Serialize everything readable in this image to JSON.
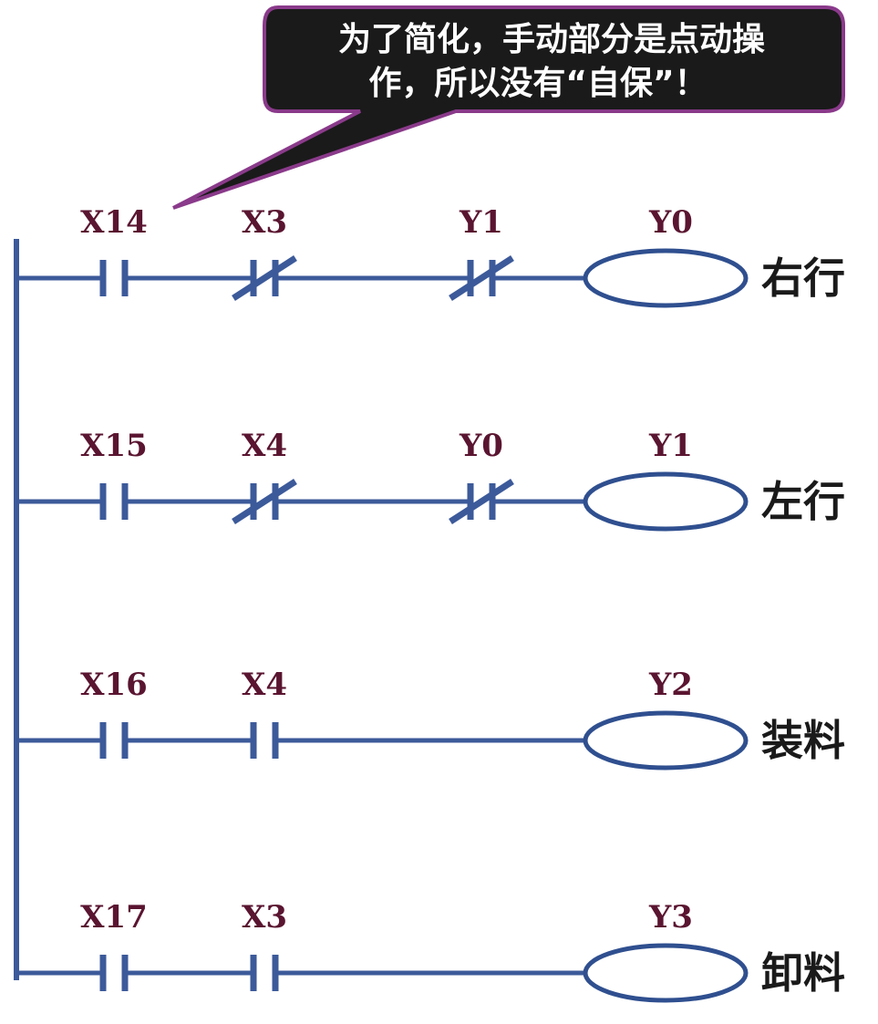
{
  "callout": {
    "line1": "为了简化，手动部分是点动操",
    "line2": "作，所以没有“自保”！"
  },
  "rungs": [
    {
      "contacts": [
        {
          "label": "X14",
          "type": "NO"
        },
        {
          "label": "X3",
          "type": "NC"
        },
        {
          "label": "Y1",
          "type": "NC"
        }
      ],
      "coil": {
        "label": "Y0",
        "name": "右行"
      }
    },
    {
      "contacts": [
        {
          "label": "X15",
          "type": "NO"
        },
        {
          "label": "X4",
          "type": "NC"
        },
        {
          "label": "Y0",
          "type": "NC"
        }
      ],
      "coil": {
        "label": "Y1",
        "name": "左行"
      }
    },
    {
      "contacts": [
        {
          "label": "X16",
          "type": "NO"
        },
        {
          "label": "X4",
          "type": "NO"
        }
      ],
      "coil": {
        "label": "Y2",
        "name": "装料"
      }
    },
    {
      "contacts": [
        {
          "label": "X17",
          "type": "NO"
        },
        {
          "label": "X3",
          "type": "NO"
        }
      ],
      "coil": {
        "label": "Y3",
        "name": "卸料"
      }
    }
  ],
  "colors": {
    "wire": "#3c5a9a",
    "callout_fill": "#1a1a1a",
    "callout_border": "#8a3a8a",
    "address_text": "#5a1530"
  }
}
